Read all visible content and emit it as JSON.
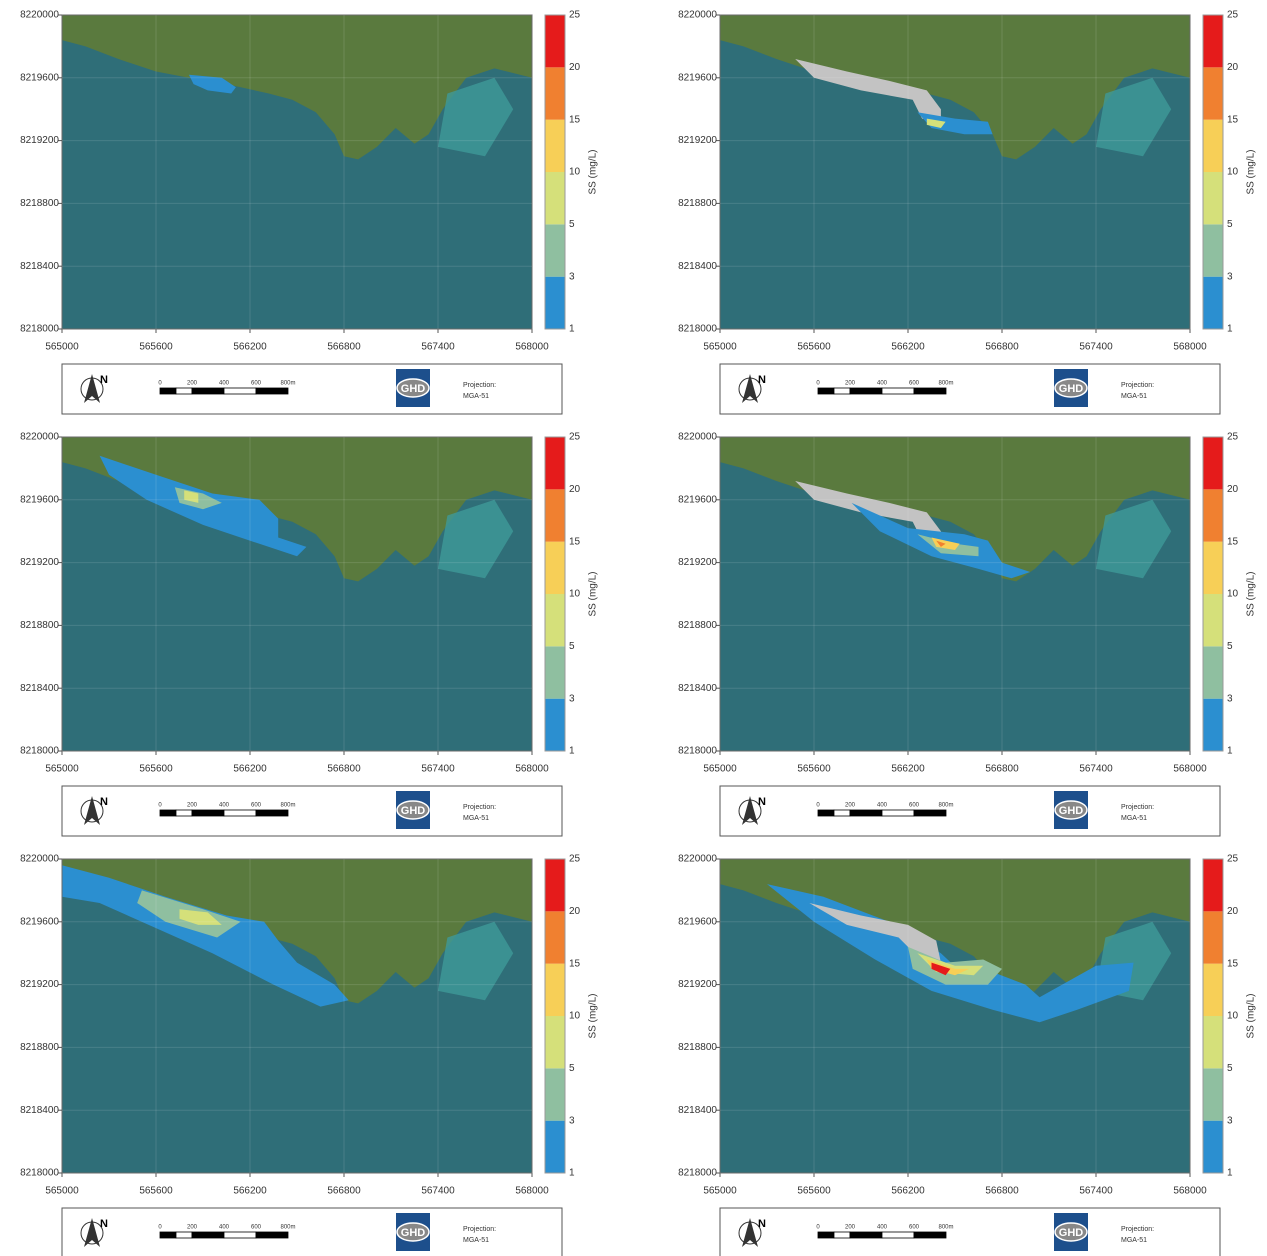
{
  "map": {
    "xlim": [
      565000,
      568000
    ],
    "ylim": [
      8218000,
      8220000
    ],
    "xticks": [
      565000,
      565600,
      566200,
      566800,
      567400,
      568000
    ],
    "yticks": [
      8218000,
      8218400,
      8218800,
      8219200,
      8219600,
      8220000
    ],
    "colorbar": {
      "label": "SS (mg/L)",
      "levels": [
        1,
        3,
        5,
        10,
        15,
        20,
        25
      ],
      "colors": [
        "#2b8fd0",
        "#8fbfa0",
        "#d5e07a",
        "#f7cf57",
        "#f08030",
        "#e51b1b"
      ]
    },
    "footer": {
      "north": "N",
      "scale_labels": [
        "0",
        "200",
        "400",
        "600",
        "800m"
      ],
      "logo": "GHD",
      "projection": "Projection:",
      "datum": "MGA-51"
    }
  }
}
